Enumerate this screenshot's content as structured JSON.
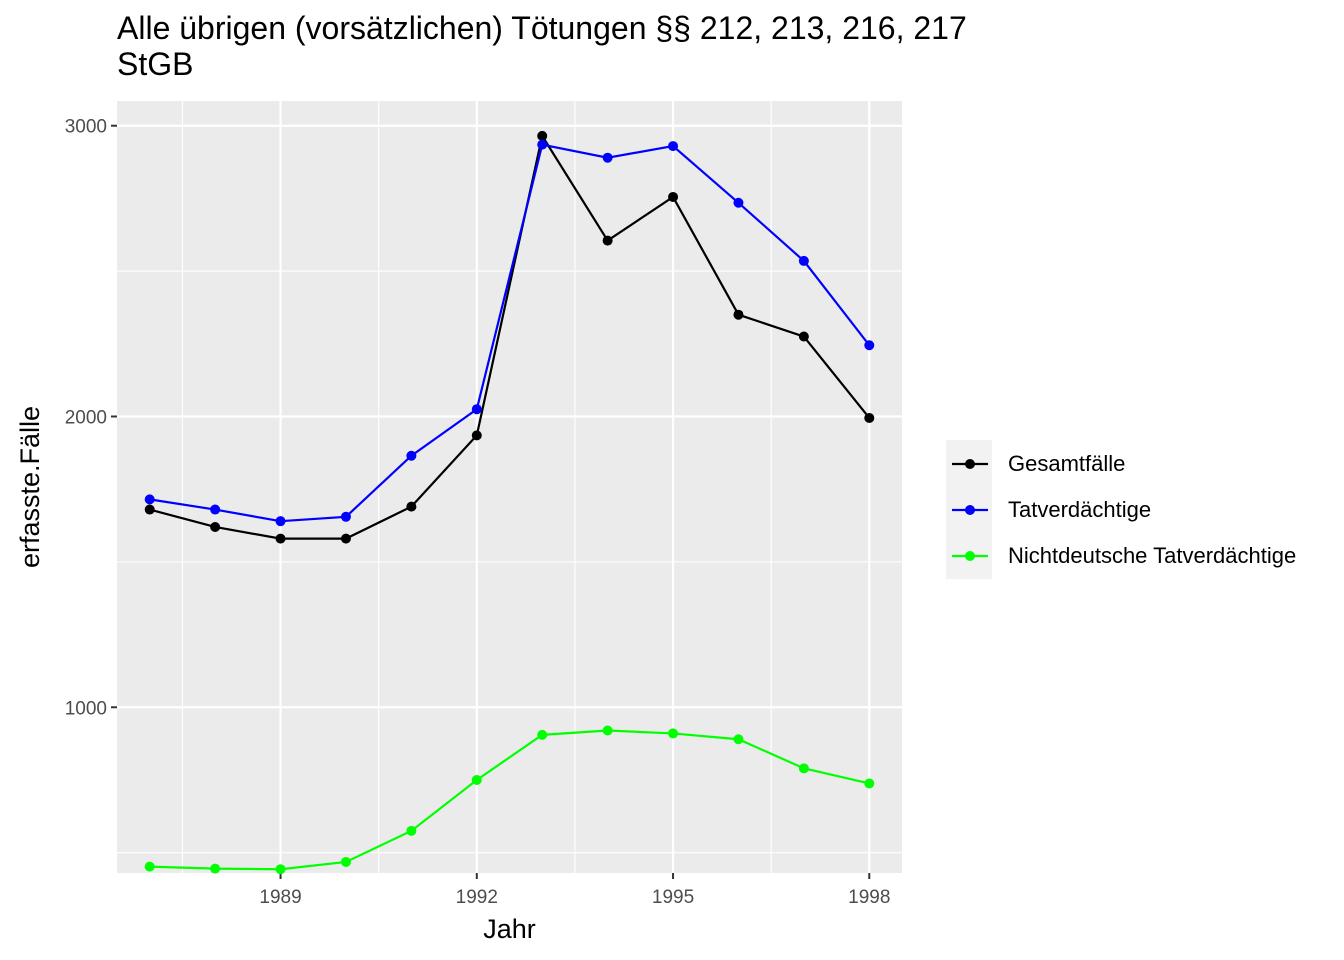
{
  "chart_data": {
    "type": "line",
    "title": "Alle übrigen (vorsätzlichen) Tötungen §§ 212, 213, 216, 217\nStGB",
    "xlabel": "Jahr",
    "ylabel": "erfasste.Fälle",
    "x": [
      1987,
      1988,
      1989,
      1990,
      1991,
      1992,
      1993,
      1994,
      1995,
      1996,
      1997,
      1998
    ],
    "xticks": [
      1989,
      1992,
      1995,
      1998
    ],
    "yticks": [
      1000,
      2000,
      3000
    ],
    "xlim": [
      1986.5,
      1998.5
    ],
    "ylim": [
      430,
      3085
    ],
    "grid": true,
    "legend_position": "right",
    "series": [
      {
        "name": "Gesamtfälle",
        "color": "#000000",
        "values": [
          1680,
          1620,
          1580,
          1580,
          1690,
          1935,
          2965,
          2605,
          2755,
          2350,
          2275,
          1995
        ]
      },
      {
        "name": "Tatverdächtige",
        "color": "#0000ff",
        "values": [
          1715,
          1680,
          1640,
          1655,
          1865,
          2025,
          2935,
          2890,
          2930,
          2735,
          2535,
          2245
        ]
      },
      {
        "name": "Nichtdeutsche Tatverdächtige",
        "color": "#00ff00",
        "values": [
          452,
          445,
          443,
          468,
          575,
          750,
          905,
          920,
          910,
          890,
          790,
          738
        ]
      }
    ]
  }
}
